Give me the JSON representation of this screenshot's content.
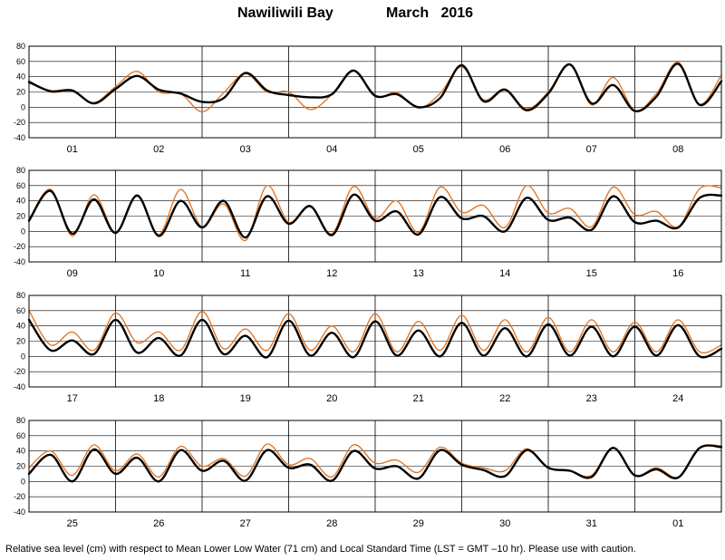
{
  "title": {
    "location": "Nawiliwili Bay",
    "month": "March",
    "year": "2016"
  },
  "footnote": "Relative sea level (cm) with respect to Mean Lower Low Water (71 cm) and Local Standard Time (LST = GMT –10 hr). Please use with caution.",
  "colors": {
    "predicted": "#000000",
    "observed": "#e0701c",
    "grid": "#000000"
  },
  "chart_data": [
    {
      "type": "line",
      "title": "",
      "xlabel": "",
      "ylabel": "",
      "ylim": [
        -40,
        80
      ],
      "yticks": [
        -40,
        -20,
        0,
        20,
        40,
        60,
        80
      ],
      "grid": true,
      "day_labels": [
        "01",
        "02",
        "03",
        "04",
        "05",
        "06",
        "07",
        "08"
      ],
      "x_hours": [
        0,
        6,
        12,
        18,
        24,
        30,
        36,
        42,
        48,
        54,
        60,
        66,
        72,
        78,
        84,
        90,
        96,
        102,
        108,
        114,
        120,
        126,
        132,
        138,
        144,
        150,
        156,
        162,
        168,
        174,
        180,
        186,
        192
      ],
      "series": [
        {
          "role": "predicted",
          "values": [
            33,
            21,
            22,
            5,
            24,
            41,
            23,
            18,
            7,
            12,
            45,
            22,
            16,
            13,
            17,
            48,
            15,
            17,
            0,
            12,
            55,
            8,
            23,
            -4,
            18,
            56,
            5,
            29,
            -5,
            14,
            57,
            3,
            34
          ]
        },
        {
          "role": "observed",
          "values": [
            35,
            20,
            21,
            6,
            27,
            47,
            20,
            18,
            -6,
            19,
            44,
            20,
            20,
            -3,
            17,
            49,
            14,
            19,
            -1,
            18,
            53,
            10,
            24,
            -2,
            20,
            57,
            3,
            39,
            -4,
            18,
            59,
            4,
            42
          ]
        }
      ]
    },
    {
      "type": "line",
      "title": "",
      "xlabel": "",
      "ylabel": "",
      "ylim": [
        -40,
        80
      ],
      "yticks": [
        -40,
        -20,
        0,
        20,
        40,
        60,
        80
      ],
      "grid": true,
      "day_labels": [
        "09",
        "10",
        "11",
        "12",
        "13",
        "14",
        "15",
        "16"
      ],
      "x_hours": [
        0,
        6,
        12,
        18,
        24,
        30,
        36,
        42,
        48,
        54,
        60,
        66,
        72,
        78,
        84,
        90,
        96,
        102,
        108,
        114,
        120,
        126,
        132,
        138,
        144,
        150,
        156,
        162,
        168,
        174,
        180,
        186,
        192
      ],
      "series": [
        {
          "role": "predicted",
          "values": [
            14,
            53,
            -3,
            42,
            -2,
            47,
            -6,
            40,
            5,
            40,
            -8,
            46,
            10,
            33,
            -5,
            48,
            14,
            26,
            -4,
            45,
            17,
            20,
            0,
            44,
            15,
            18,
            2,
            46,
            12,
            14,
            5,
            44,
            47
          ]
        },
        {
          "role": "observed",
          "values": [
            15,
            55,
            -6,
            48,
            -1,
            48,
            -4,
            55,
            6,
            36,
            -12,
            60,
            12,
            34,
            -3,
            59,
            17,
            40,
            -1,
            58,
            25,
            34,
            5,
            60,
            24,
            30,
            6,
            58,
            22,
            26,
            6,
            56,
            57
          ]
        }
      ]
    },
    {
      "type": "line",
      "title": "",
      "xlabel": "",
      "ylabel": "",
      "ylim": [
        -40,
        80
      ],
      "yticks": [
        -40,
        -20,
        0,
        20,
        40,
        60,
        80
      ],
      "grid": true,
      "day_labels": [
        "17",
        "18",
        "19",
        "20",
        "21",
        "22",
        "23",
        "24"
      ],
      "x_hours": [
        0,
        6,
        12,
        18,
        24,
        30,
        36,
        42,
        48,
        54,
        60,
        66,
        72,
        78,
        84,
        90,
        96,
        102,
        108,
        114,
        120,
        126,
        132,
        138,
        144,
        150,
        156,
        162,
        168,
        174,
        180,
        186,
        192
      ],
      "series": [
        {
          "role": "predicted",
          "values": [
            48,
            8,
            21,
            3,
            48,
            5,
            24,
            1,
            48,
            3,
            27,
            -1,
            47,
            1,
            31,
            -1,
            46,
            1,
            34,
            0,
            44,
            1,
            37,
            0,
            42,
            1,
            39,
            0,
            39,
            1,
            41,
            0,
            10
          ]
        },
        {
          "role": "observed",
          "values": [
            60,
            15,
            32,
            8,
            57,
            18,
            32,
            8,
            59,
            10,
            36,
            8,
            56,
            8,
            40,
            6,
            56,
            6,
            46,
            8,
            54,
            8,
            48,
            6,
            51,
            6,
            48,
            6,
            45,
            6,
            48,
            6,
            15
          ]
        }
      ]
    },
    {
      "type": "line",
      "title": "",
      "xlabel": "",
      "ylabel": "",
      "ylim": [
        -40,
        80
      ],
      "yticks": [
        -40,
        -20,
        0,
        20,
        40,
        60,
        80
      ],
      "grid": true,
      "day_labels": [
        "25",
        "26",
        "27",
        "28",
        "29",
        "30",
        "31",
        "01"
      ],
      "x_hours": [
        0,
        6,
        12,
        18,
        24,
        30,
        36,
        42,
        48,
        54,
        60,
        66,
        72,
        78,
        84,
        90,
        96,
        102,
        108,
        114,
        120,
        126,
        132,
        138,
        144,
        150,
        156,
        162,
        168,
        174,
        180,
        186,
        192
      ],
      "series": [
        {
          "role": "predicted",
          "values": [
            10,
            35,
            0,
            42,
            10,
            31,
            0,
            41,
            14,
            27,
            1,
            41,
            18,
            22,
            1,
            40,
            17,
            20,
            4,
            41,
            22,
            15,
            7,
            41,
            18,
            14,
            6,
            44,
            8,
            16,
            5,
            44,
            45
          ]
        },
        {
          "role": "observed",
          "values": [
            18,
            40,
            8,
            48,
            14,
            36,
            6,
            46,
            20,
            30,
            7,
            49,
            22,
            30,
            6,
            48,
            24,
            28,
            12,
            45,
            24,
            18,
            14,
            43,
            18,
            14,
            8,
            45,
            8,
            18,
            6,
            44,
            47
          ]
        }
      ]
    }
  ]
}
